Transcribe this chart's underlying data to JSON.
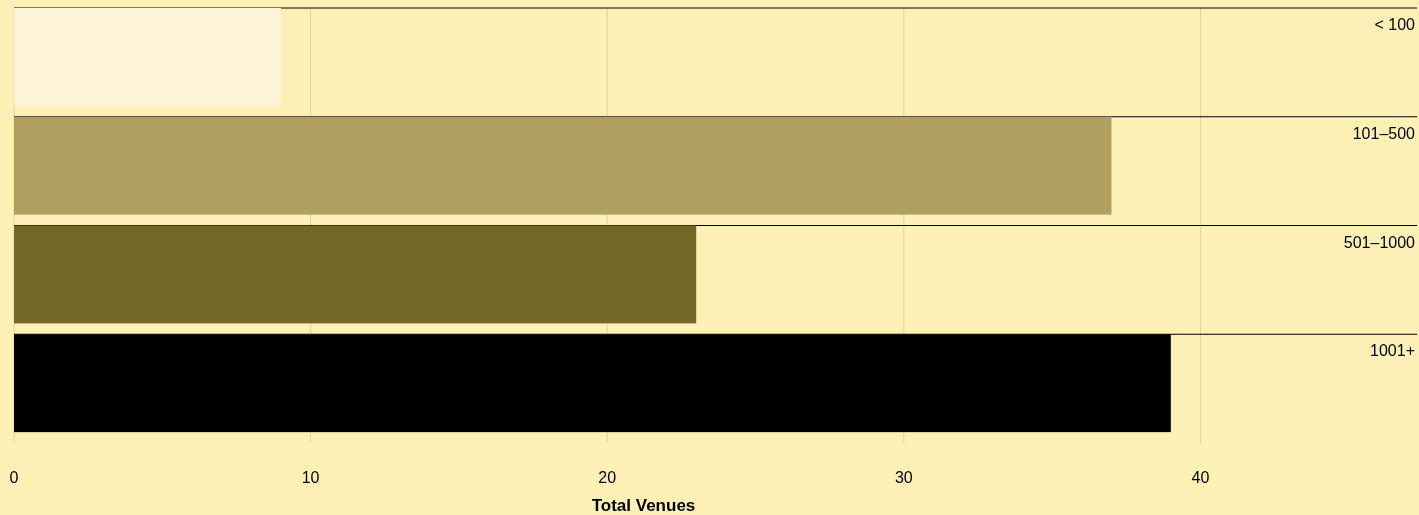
{
  "chart_data": {
    "type": "bar",
    "orientation": "horizontal",
    "xlabel": "Total Venues",
    "categories": [
      "< 100",
      "101–500",
      "501–1000",
      "1001+"
    ],
    "values": [
      9,
      37,
      23,
      39
    ],
    "colors": [
      "#fdf4d9",
      "#afa060",
      "#746829",
      "#000000"
    ],
    "xlim": [
      0,
      47.3
    ],
    "xticks": [
      0,
      10,
      20,
      30,
      40
    ],
    "grid": "x"
  }
}
